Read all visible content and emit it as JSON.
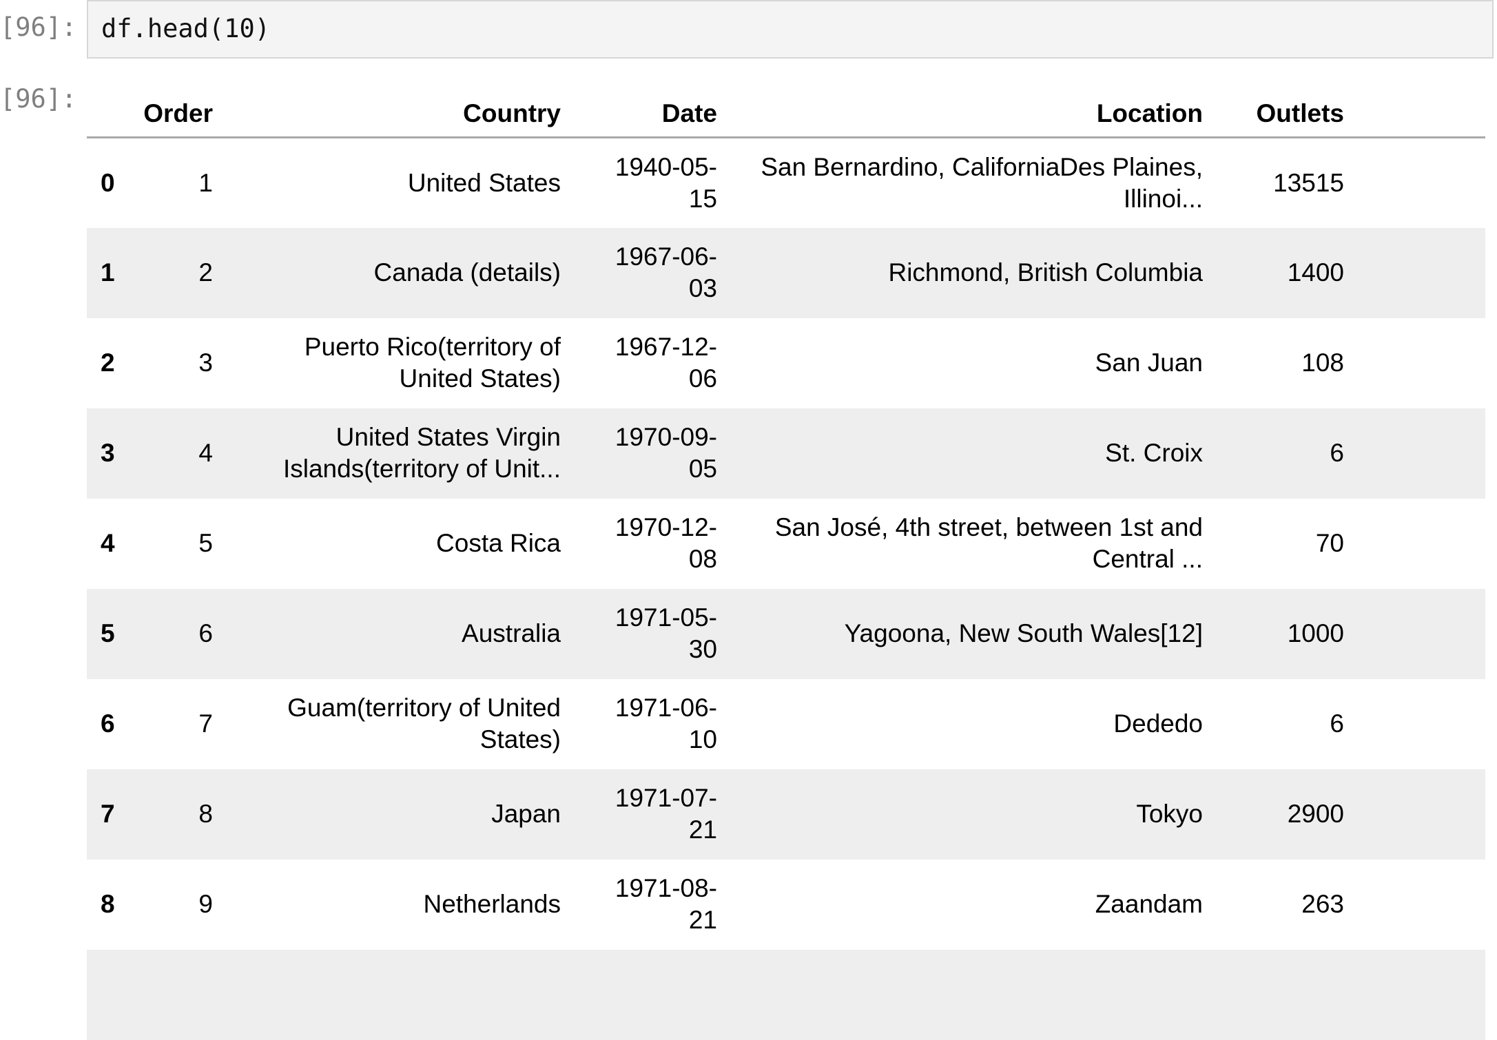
{
  "cell": {
    "in_prompt": "[96]:",
    "out_prompt": "[96]:",
    "code": "df.head(10)"
  },
  "table": {
    "columns": [
      "Order",
      "Country",
      "Date",
      "Location",
      "Outlets"
    ],
    "rows": [
      {
        "index": "0",
        "order": "1",
        "country": "United States",
        "date": "1940-05-15",
        "location": "San Bernardino, CaliforniaDes Plaines, Illinoi...",
        "outlets": "13515"
      },
      {
        "index": "1",
        "order": "2",
        "country": "Canada (details)",
        "date": "1967-06-03",
        "location": "Richmond, British Columbia",
        "outlets": "1400"
      },
      {
        "index": "2",
        "order": "3",
        "country": "Puerto Rico(territory of United States)",
        "date": "1967-12-06",
        "location": "San Juan",
        "outlets": "108"
      },
      {
        "index": "3",
        "order": "4",
        "country": "United States Virgin Islands(territory of Unit...",
        "date": "1970-09-05",
        "location": "St. Croix",
        "outlets": "6"
      },
      {
        "index": "4",
        "order": "5",
        "country": "Costa Rica",
        "date": "1970-12-08",
        "location": "San José, 4th street, between 1st and Central ...",
        "outlets": "70"
      },
      {
        "index": "5",
        "order": "6",
        "country": "Australia",
        "date": "1971-05-30",
        "location": "Yagoona, New South Wales[12]",
        "outlets": "1000"
      },
      {
        "index": "6",
        "order": "7",
        "country": "Guam(territory of United States)",
        "date": "1971-06-10",
        "location": "Dededo",
        "outlets": "6"
      },
      {
        "index": "7",
        "order": "8",
        "country": "Japan",
        "date": "1971-07-21",
        "location": "Tokyo",
        "outlets": "2900"
      },
      {
        "index": "8",
        "order": "9",
        "country": "Netherlands",
        "date": "1971-08-21",
        "location": "Zaandam",
        "outlets": "263"
      }
    ]
  },
  "colors": {
    "prompt": "#7f7f7f",
    "code_background": "#f4f4f4",
    "code_border": "#d6d6d6",
    "row_stripe": "#eeeeee",
    "header_rule": "#a9a9a9"
  }
}
